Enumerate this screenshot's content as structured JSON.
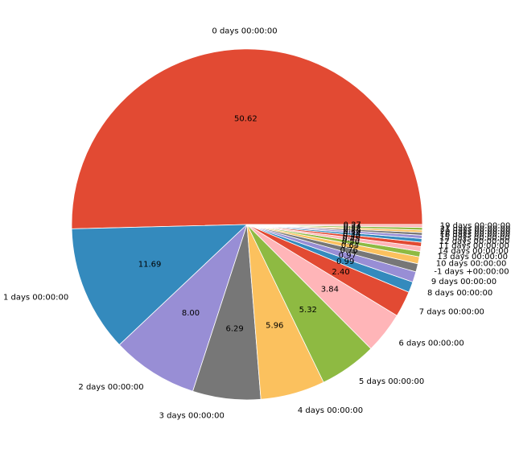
{
  "chart_data": {
    "type": "pie",
    "title": "",
    "start_angle_deg": 0,
    "direction": "counterclockwise",
    "categories": [
      "0 days 00:00:00",
      "1 days 00:00:00",
      "2 days 00:00:00",
      "3 days 00:00:00",
      "4 days 00:00:00",
      "5 days 00:00:00",
      "6 days 00:00:00",
      "7 days 00:00:00",
      "8 days 00:00:00",
      "9 days 00:00:00",
      "-1 days +00:00:00",
      "10 days 00:00:00",
      "13 days 00:00:00",
      "14 days 00:00:00",
      "11 days 00:00:00",
      "12 days 00:00:00",
      "15 days 00:00:00",
      "16 days 00:00:00",
      "20 days 00:00:00",
      "21 days 00:00:00",
      "19 days 00:00:00"
    ],
    "values": [
      50.62,
      11.69,
      8.0,
      6.29,
      5.96,
      5.32,
      3.84,
      2.4,
      0.99,
      0.97,
      0.76,
      0.64,
      0.5,
      0.45,
      0.4,
      0.34,
      0.3,
      0.25,
      0.22,
      0.24,
      0.27
    ],
    "value_labels": [
      "50.62",
      "11.69",
      "8.00",
      "6.29",
      "5.96",
      "5.32",
      "3.84",
      "2.40",
      "0.99",
      "0.97",
      "0.76",
      "0.64",
      "0.50",
      "0.45",
      "0.40",
      "0.34",
      "0.30",
      "0.25",
      "0.22",
      "0.24",
      "0.27"
    ],
    "colors": [
      "#E24A33",
      "#348ABD",
      "#988ED5",
      "#777777",
      "#FBC15E",
      "#8EBA42",
      "#FFB5B8",
      "#E24A33",
      "#348ABD",
      "#988ED5",
      "#777777",
      "#FBC15E",
      "#8EBA42",
      "#FFB5B8",
      "#E24A33",
      "#348ABD",
      "#988ED5",
      "#777777",
      "#FBC15E",
      "#8EBA42",
      "#FFB5B8"
    ]
  }
}
